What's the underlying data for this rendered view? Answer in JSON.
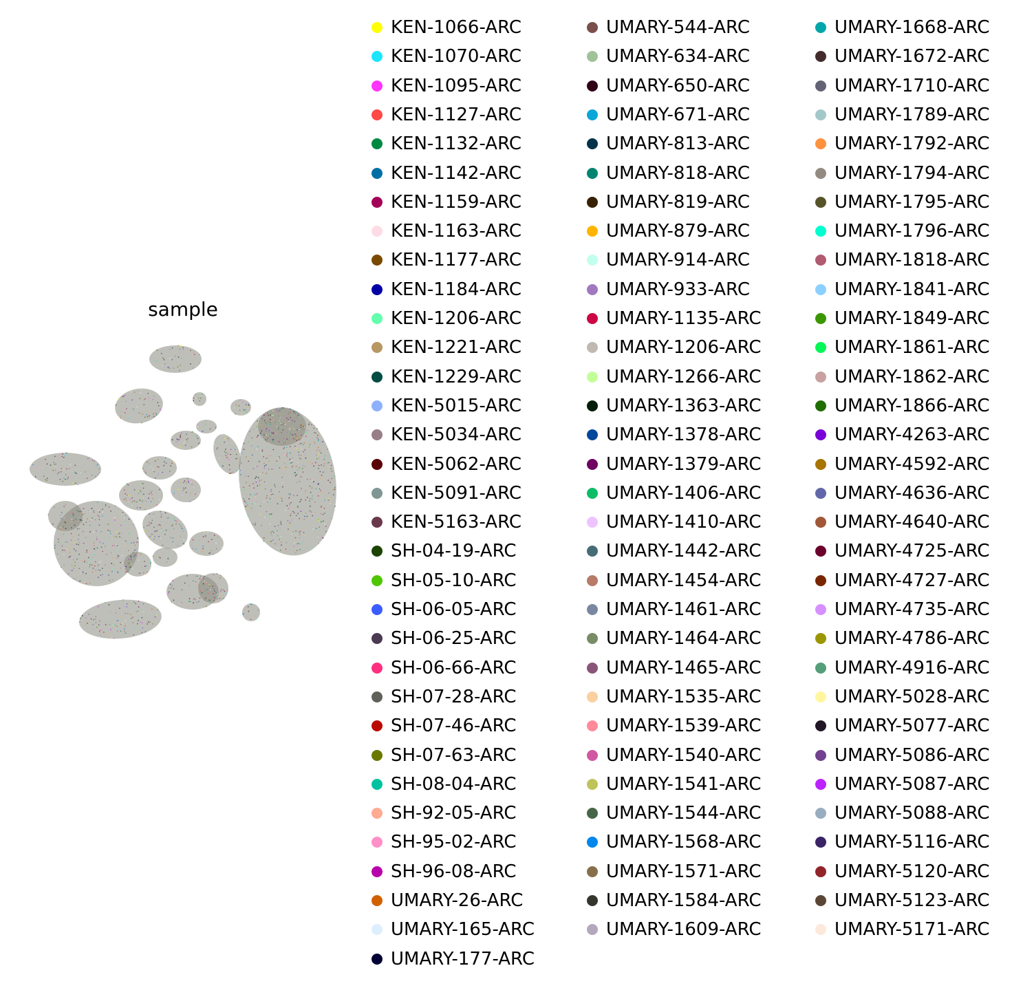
{
  "chart_data": {
    "type": "scatter",
    "title": "sample",
    "xlabel": "",
    "ylabel": "",
    "grid": false,
    "axes_visible": false,
    "legend_placement": "right",
    "legend_columns": 3,
    "series": [
      {
        "name": "KEN-1066-ARC",
        "color": "#ffff00"
      },
      {
        "name": "KEN-1070-ARC",
        "color": "#1ce6ff"
      },
      {
        "name": "KEN-1095-ARC",
        "color": "#ff34ff"
      },
      {
        "name": "KEN-1127-ARC",
        "color": "#ff4a46"
      },
      {
        "name": "KEN-1132-ARC",
        "color": "#008941"
      },
      {
        "name": "KEN-1142-ARC",
        "color": "#006fa6"
      },
      {
        "name": "KEN-1159-ARC",
        "color": "#a30059"
      },
      {
        "name": "KEN-1163-ARC",
        "color": "#ffdbe5"
      },
      {
        "name": "KEN-1177-ARC",
        "color": "#7a4900"
      },
      {
        "name": "KEN-1184-ARC",
        "color": "#0000a6"
      },
      {
        "name": "KEN-1206-ARC",
        "color": "#63ffac"
      },
      {
        "name": "KEN-1221-ARC",
        "color": "#b79762"
      },
      {
        "name": "KEN-1229-ARC",
        "color": "#004d43"
      },
      {
        "name": "KEN-5015-ARC",
        "color": "#8fb0ff"
      },
      {
        "name": "KEN-5034-ARC",
        "color": "#997d87"
      },
      {
        "name": "KEN-5062-ARC",
        "color": "#5a0007"
      },
      {
        "name": "KEN-5091-ARC",
        "color": "#809693"
      },
      {
        "name": "KEN-5163-ARC",
        "color": "#6a3a4c"
      },
      {
        "name": "SH-04-19-ARC",
        "color": "#1b4400"
      },
      {
        "name": "SH-05-10-ARC",
        "color": "#4fc601"
      },
      {
        "name": "SH-06-05-ARC",
        "color": "#3b5dff"
      },
      {
        "name": "SH-06-25-ARC",
        "color": "#4a3b53"
      },
      {
        "name": "SH-06-66-ARC",
        "color": "#ff2f80"
      },
      {
        "name": "SH-07-28-ARC",
        "color": "#61615a"
      },
      {
        "name": "SH-07-46-ARC",
        "color": "#ba0900"
      },
      {
        "name": "SH-07-63-ARC",
        "color": "#6b7900"
      },
      {
        "name": "SH-08-04-ARC",
        "color": "#00c2a0"
      },
      {
        "name": "SH-92-05-ARC",
        "color": "#ffaa92"
      },
      {
        "name": "SH-95-02-ARC",
        "color": "#ff90c9"
      },
      {
        "name": "SH-96-08-ARC",
        "color": "#b903aa"
      },
      {
        "name": "UMARY-26-ARC",
        "color": "#d16100"
      },
      {
        "name": "UMARY-165-ARC",
        "color": "#ddefff"
      },
      {
        "name": "UMARY-177-ARC",
        "color": "#000035"
      },
      {
        "name": "UMARY-544-ARC",
        "color": "#7b4f4b"
      },
      {
        "name": "UMARY-634-ARC",
        "color": "#a1c299"
      },
      {
        "name": "UMARY-650-ARC",
        "color": "#300018"
      },
      {
        "name": "UMARY-671-ARC",
        "color": "#0aa6d8"
      },
      {
        "name": "UMARY-813-ARC",
        "color": "#013349"
      },
      {
        "name": "UMARY-818-ARC",
        "color": "#00846f"
      },
      {
        "name": "UMARY-819-ARC",
        "color": "#372101"
      },
      {
        "name": "UMARY-879-ARC",
        "color": "#ffb500"
      },
      {
        "name": "UMARY-914-ARC",
        "color": "#c2ffed"
      },
      {
        "name": "UMARY-933-ARC",
        "color": "#a079bf"
      },
      {
        "name": "UMARY-1135-ARC",
        "color": "#cc0744"
      },
      {
        "name": "UMARY-1206-ARC",
        "color": "#c0b9b2"
      },
      {
        "name": "UMARY-1266-ARC",
        "color": "#c2ff99"
      },
      {
        "name": "UMARY-1363-ARC",
        "color": "#001e09"
      },
      {
        "name": "UMARY-1378-ARC",
        "color": "#00489c"
      },
      {
        "name": "UMARY-1379-ARC",
        "color": "#6f0062"
      },
      {
        "name": "UMARY-1406-ARC",
        "color": "#0cbd66"
      },
      {
        "name": "UMARY-1410-ARC",
        "color": "#eec3ff"
      },
      {
        "name": "UMARY-1442-ARC",
        "color": "#456d75"
      },
      {
        "name": "UMARY-1454-ARC",
        "color": "#b77b68"
      },
      {
        "name": "UMARY-1461-ARC",
        "color": "#7a87a1"
      },
      {
        "name": "UMARY-1464-ARC",
        "color": "#788d66"
      },
      {
        "name": "UMARY-1465-ARC",
        "color": "#885578"
      },
      {
        "name": "UMARY-1535-ARC",
        "color": "#fad09f"
      },
      {
        "name": "UMARY-1539-ARC",
        "color": "#ff8a9a"
      },
      {
        "name": "UMARY-1540-ARC",
        "color": "#d157a0"
      },
      {
        "name": "UMARY-1541-ARC",
        "color": "#bec459"
      },
      {
        "name": "UMARY-1544-ARC",
        "color": "#456648"
      },
      {
        "name": "UMARY-1568-ARC",
        "color": "#0086ed"
      },
      {
        "name": "UMARY-1571-ARC",
        "color": "#886f4c"
      },
      {
        "name": "UMARY-1584-ARC",
        "color": "#34362d"
      },
      {
        "name": "UMARY-1609-ARC",
        "color": "#b4a8bd"
      },
      {
        "name": "UMARY-1668-ARC",
        "color": "#00a6aa"
      },
      {
        "name": "UMARY-1672-ARC",
        "color": "#452c2c"
      },
      {
        "name": "UMARY-1710-ARC",
        "color": "#636375"
      },
      {
        "name": "UMARY-1789-ARC",
        "color": "#a3c8c9"
      },
      {
        "name": "UMARY-1792-ARC",
        "color": "#ff913f"
      },
      {
        "name": "UMARY-1794-ARC",
        "color": "#938a81"
      },
      {
        "name": "UMARY-1795-ARC",
        "color": "#575329"
      },
      {
        "name": "UMARY-1796-ARC",
        "color": "#00fecf"
      },
      {
        "name": "UMARY-1818-ARC",
        "color": "#b05b6f"
      },
      {
        "name": "UMARY-1841-ARC",
        "color": "#8cd0ff"
      },
      {
        "name": "UMARY-1849-ARC",
        "color": "#3b9700"
      },
      {
        "name": "UMARY-1861-ARC",
        "color": "#04f757"
      },
      {
        "name": "UMARY-1862-ARC",
        "color": "#c8a1a1"
      },
      {
        "name": "UMARY-1866-ARC",
        "color": "#1e6e00"
      },
      {
        "name": "UMARY-4263-ARC",
        "color": "#7900d7"
      },
      {
        "name": "UMARY-4592-ARC",
        "color": "#a77500"
      },
      {
        "name": "UMARY-4636-ARC",
        "color": "#6367a9"
      },
      {
        "name": "UMARY-4640-ARC",
        "color": "#a05837"
      },
      {
        "name": "UMARY-4725-ARC",
        "color": "#6b002c"
      },
      {
        "name": "UMARY-4727-ARC",
        "color": "#772600"
      },
      {
        "name": "UMARY-4735-ARC",
        "color": "#d790ff"
      },
      {
        "name": "UMARY-4786-ARC",
        "color": "#9b9700"
      },
      {
        "name": "UMARY-4916-ARC",
        "color": "#549e79"
      },
      {
        "name": "UMARY-5028-ARC",
        "color": "#fff69f"
      },
      {
        "name": "UMARY-5077-ARC",
        "color": "#201625"
      },
      {
        "name": "UMARY-5086-ARC",
        "color": "#72418f"
      },
      {
        "name": "UMARY-5087-ARC",
        "color": "#bc23ff"
      },
      {
        "name": "UMARY-5088-ARC",
        "color": "#99adc0"
      },
      {
        "name": "UMARY-5116-ARC",
        "color": "#3a2465"
      },
      {
        "name": "UMARY-5120-ARC",
        "color": "#922329"
      },
      {
        "name": "UMARY-5123-ARC",
        "color": "#5b4534"
      },
      {
        "name": "UMARY-5171-ARC",
        "color": "#fde8dc"
      }
    ]
  }
}
